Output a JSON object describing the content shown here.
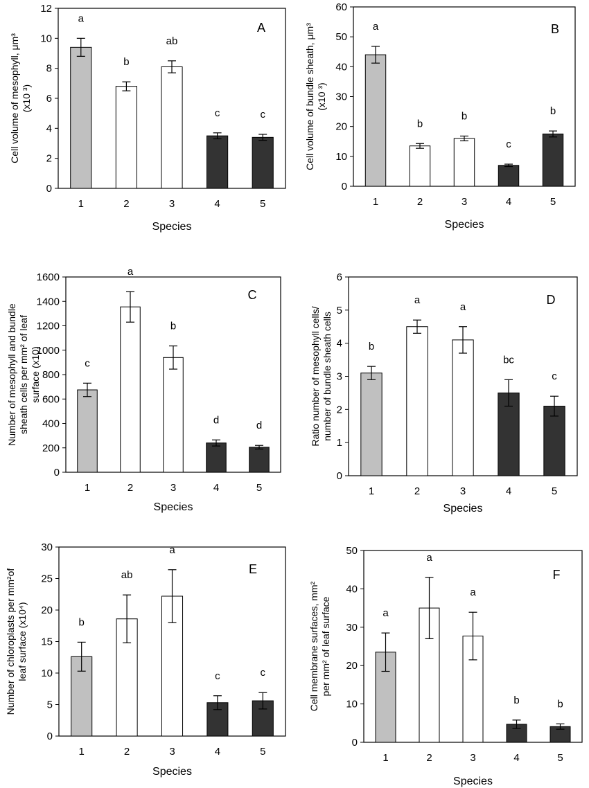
{
  "colors": {
    "grey": "#c0c0c0",
    "white": "#ffffff",
    "black": "#333333"
  },
  "chart_data": [
    {
      "panel": "A",
      "type": "bar",
      "categories": [
        "1",
        "2",
        "3",
        "4",
        "5"
      ],
      "values": [
        9.4,
        6.8,
        8.1,
        3.5,
        3.4
      ],
      "errors": [
        0.6,
        0.3,
        0.4,
        0.2,
        0.2
      ],
      "letters": [
        "a",
        "b",
        "ab",
        "c",
        "c"
      ],
      "bar_colors": [
        "grey",
        "white",
        "white",
        "black",
        "black"
      ],
      "ylim": [
        0,
        12
      ],
      "yticks": [
        "0",
        "2",
        "4",
        "6",
        "8",
        "10",
        "12"
      ],
      "xlabel": "Species",
      "ylabel_lines": [
        "Cell volume of mesophyll, μm³",
        "(x10 ³)"
      ]
    },
    {
      "panel": "B",
      "type": "bar",
      "categories": [
        "1",
        "2",
        "3",
        "4",
        "5"
      ],
      "values": [
        44,
        13.5,
        16,
        7,
        17.5
      ],
      "errors": [
        2.8,
        0.8,
        0.8,
        0.4,
        1.0
      ],
      "letters": [
        "a",
        "b",
        "b",
        "c",
        "b"
      ],
      "bar_colors": [
        "grey",
        "white",
        "white",
        "black",
        "black"
      ],
      "ylim": [
        0,
        60
      ],
      "yticks": [
        "0",
        "10",
        "20",
        "30",
        "40",
        "50",
        "60"
      ],
      "xlabel": "Species",
      "ylabel_lines": [
        "Cell volume of bundle sheath, μm³",
        "(x10 ³)"
      ]
    },
    {
      "panel": "C",
      "type": "bar",
      "categories": [
        "1",
        "2",
        "3",
        "4",
        "5"
      ],
      "values": [
        675,
        1355,
        940,
        240,
        205
      ],
      "errors": [
        55,
        125,
        95,
        25,
        15
      ],
      "letters": [
        "c",
        "a",
        "b",
        "d",
        "d"
      ],
      "bar_colors": [
        "grey",
        "white",
        "white",
        "black",
        "black"
      ],
      "ylim": [
        0,
        1600
      ],
      "yticks": [
        "0",
        "200",
        "400",
        "600",
        "800",
        "1000",
        "1200",
        "1400",
        "1600"
      ],
      "xlabel": "Species",
      "ylabel_lines": [
        "Number of mesophyll and bundle",
        "sheath cells per mm² of leaf",
        "surface (x10)"
      ]
    },
    {
      "panel": "D",
      "type": "bar",
      "categories": [
        "1",
        "2",
        "3",
        "4",
        "5"
      ],
      "values": [
        3.1,
        4.5,
        4.1,
        2.5,
        2.1
      ],
      "errors": [
        0.2,
        0.2,
        0.4,
        0.4,
        0.3
      ],
      "letters": [
        "b",
        "a",
        "a",
        "bc",
        "c"
      ],
      "bar_colors": [
        "grey",
        "white",
        "white",
        "black",
        "black"
      ],
      "ylim": [
        0,
        6
      ],
      "yticks": [
        "0",
        "1",
        "2",
        "3",
        "4",
        "5",
        "6"
      ],
      "xlabel": "Species",
      "ylabel_lines": [
        "Ratio number of mesophyll cells/",
        "number of bundle sheath cells"
      ]
    },
    {
      "panel": "E",
      "type": "bar",
      "categories": [
        "1",
        "2",
        "3",
        "4",
        "5"
      ],
      "values": [
        12.6,
        18.6,
        22.2,
        5.3,
        5.6
      ],
      "errors": [
        2.3,
        3.8,
        4.2,
        1.1,
        1.3
      ],
      "letters": [
        "b",
        "ab",
        "a",
        "c",
        "c"
      ],
      "bar_colors": [
        "grey",
        "white",
        "white",
        "black",
        "black"
      ],
      "ylim": [
        0,
        30
      ],
      "yticks": [
        "0",
        "5",
        "10",
        "15",
        "20",
        "25",
        "30"
      ],
      "xlabel": "Species",
      "ylabel_lines": [
        "Number of chloroplasts per mm²of",
        "leaf surface (x10⁴)"
      ]
    },
    {
      "panel": "F",
      "type": "bar",
      "categories": [
        "1",
        "2",
        "3",
        "4",
        "5"
      ],
      "values": [
        23.5,
        35,
        27.7,
        4.7,
        4.1
      ],
      "errors": [
        5.0,
        8.0,
        6.2,
        1.1,
        0.7
      ],
      "letters": [
        "a",
        "a",
        "a",
        "b",
        "b"
      ],
      "bar_colors": [
        "grey",
        "white",
        "white",
        "black",
        "black"
      ],
      "ylim": [
        0,
        50
      ],
      "yticks": [
        "0",
        "10",
        "20",
        "30",
        "40",
        "50"
      ],
      "xlabel": "Species",
      "ylabel_lines": [
        "Cell  membrane surfaces, mm²",
        "per mm² of leaf surface"
      ]
    }
  ]
}
